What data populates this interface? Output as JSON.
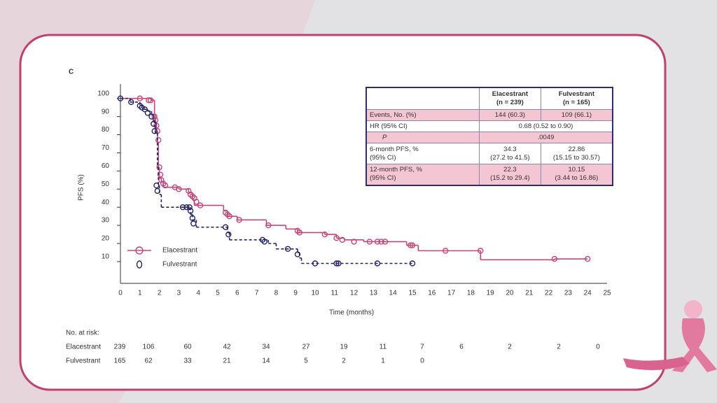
{
  "panel_label": "C",
  "chart_data": {
    "type": "km-step",
    "ylabel": "PFS (%)",
    "xlabel": "Time (months)",
    "xlim": [
      0,
      25
    ],
    "xticks": [
      0,
      1,
      2,
      3,
      4,
      5,
      6,
      7,
      8,
      9,
      10,
      11,
      12,
      13,
      14,
      15,
      16,
      17,
      18,
      19,
      20,
      21,
      22,
      23,
      24,
      25
    ],
    "ylim": [
      -2,
      108
    ],
    "yticks": [
      10,
      20,
      30,
      40,
      50,
      60,
      70,
      80,
      90,
      100
    ],
    "legend": "lower left",
    "series": [
      {
        "name": "Elacestrant",
        "color": "#c8457a",
        "dashed": false,
        "x": [
          0,
          1.6,
          1.75,
          1.8,
          1.85,
          1.9,
          1.95,
          2.0,
          2.1,
          2.2,
          3.0,
          3.5,
          3.7,
          3.8,
          5.3,
          5.5,
          6,
          7.5,
          8.5,
          9.1,
          10.5,
          11.1,
          11.5,
          12.5,
          14.7,
          15.3,
          18.5,
          18.5,
          22.3,
          24
        ],
        "values": [
          100,
          99,
          91,
          87,
          82,
          76,
          62,
          56,
          54,
          51,
          50,
          48,
          44,
          41,
          38,
          35,
          33,
          30,
          28,
          26,
          25,
          23,
          22,
          21,
          19,
          16,
          16,
          11,
          11.5,
          11.5
        ],
        "censor_x": [
          1.0,
          1.45,
          1.55,
          1.75,
          1.8,
          1.85,
          1.9,
          1.95,
          2.0,
          2.05,
          2.1,
          2.2,
          2.3,
          2.8,
          3.0,
          3.5,
          3.6,
          3.7,
          3.8,
          3.9,
          4.1,
          5.4,
          5.5,
          5.6,
          6.1,
          7.6,
          9.1,
          9.2,
          10.5,
          11.1,
          11.4,
          12.0,
          12.8,
          13.2,
          13.4,
          13.6,
          14.9,
          15.0,
          16.7,
          18.5,
          22.3,
          24.0
        ],
        "censor_y": [
          100,
          99,
          99,
          90,
          88,
          85,
          82,
          77,
          62,
          58,
          55,
          53,
          52,
          51,
          50,
          49,
          47,
          46,
          45,
          43,
          41,
          37,
          36,
          35,
          33,
          30,
          27,
          26,
          25,
          23,
          22,
          21,
          21,
          21,
          21,
          21,
          19,
          19,
          16,
          16,
          11.5,
          11.5
        ]
      },
      {
        "name": "Fulvestrant",
        "color": "#24246e",
        "dashed": true,
        "x": [
          0,
          0.5,
          1,
          1.2,
          1.4,
          1.6,
          1.7,
          1.75,
          1.8,
          1.9,
          1.95,
          2.0,
          2.1,
          3.4,
          3.6,
          3.7,
          3.9,
          5.4,
          5.5,
          5.6,
          7.4,
          7.6,
          8,
          9.1,
          9.2,
          9.3,
          15
        ],
        "values": [
          100,
          98,
          96,
          94,
          93,
          91,
          88,
          85,
          81,
          62,
          52,
          47,
          40,
          40,
          36,
          33,
          29,
          29,
          26,
          22,
          22,
          20,
          17,
          15,
          12,
          9,
          9
        ],
        "censor_x": [
          0,
          0.55,
          1.0,
          1.1,
          1.25,
          1.4,
          1.6,
          1.7,
          1.75,
          1.85,
          1.9,
          3.2,
          3.4,
          3.55,
          3.6,
          3.7,
          3.75,
          5.4,
          5.55,
          7.3,
          7.4,
          8.6,
          9.1,
          10.0,
          11.1,
          11.2,
          13.2,
          15.0
        ],
        "censor_y": [
          100,
          98,
          96,
          95,
          94,
          92,
          90,
          86,
          82,
          52,
          49,
          40,
          40,
          40,
          38,
          34,
          31,
          29,
          25,
          22,
          21,
          17,
          14,
          9,
          9,
          9,
          9,
          9
        ]
      }
    ]
  },
  "risk_table": {
    "title": "No. at risk:",
    "rows": [
      {
        "name": "Elacestrant",
        "values": [
          "239",
          "106",
          "60",
          "42",
          "34",
          "27",
          "19",
          "11",
          "7",
          "6",
          "2",
          "2",
          "0"
        ]
      },
      {
        "name": "Fulvestrant",
        "values": [
          "165",
          "62",
          "33",
          "21",
          "14",
          "5",
          "2",
          "1",
          "0"
        ]
      }
    ]
  },
  "summary_table": {
    "columns": [
      {
        "name": "Elacestrant",
        "n": "(n = 239)"
      },
      {
        "name": "Fulvestrant",
        "n": "(n = 165)"
      }
    ],
    "rows": [
      {
        "label": [
          "Events, No. (%)"
        ],
        "shaded": true,
        "cells": [
          [
            "144 (60.3)"
          ],
          [
            "109 (66.1)"
          ]
        ]
      },
      {
        "label": [
          "HR (95% CI)"
        ],
        "shaded": false,
        "span": "0.68 (0.52 to 0.90)"
      },
      {
        "label": [
          "P"
        ],
        "italic": true,
        "shaded": true,
        "span": ".0049"
      },
      {
        "label": [
          "6-month PFS, %",
          "(95% CI)"
        ],
        "shaded": false,
        "cells": [
          [
            "34.3",
            "(27.2 to 41.5)"
          ],
          [
            "22.86",
            "(15.15 to 30.57)"
          ]
        ]
      },
      {
        "label": [
          "12-month PFS, %",
          "(95% CI)"
        ],
        "shaded": true,
        "cells": [
          [
            "22.3",
            "(15.2 to 29.4)"
          ],
          [
            "10.15",
            "(3.44 to 16.86)"
          ]
        ]
      }
    ]
  }
}
